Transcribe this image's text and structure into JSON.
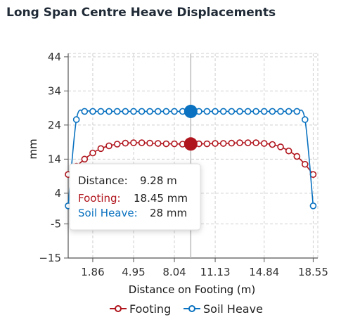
{
  "chart_data": {
    "type": "line",
    "title": "Long Span Centre Heave Displacements",
    "xlabel": "Distance on Footing (m)",
    "ylabel": "mm",
    "xlim": [
      0,
      18.9
    ],
    "ylim": [
      -15,
      45
    ],
    "x_ticks": [
      1.86,
      4.95,
      8.04,
      11.13,
      14.84,
      18.55
    ],
    "x_tick_labels": [
      "1.86",
      "4.95",
      "8.04",
      "11.13",
      "14.84",
      "18.55"
    ],
    "y_ticks": [
      -15,
      -5,
      4,
      14,
      24,
      34,
      44
    ],
    "y_tick_labels": [
      "−15",
      "-5",
      "4",
      "14",
      "24",
      "34",
      "44"
    ],
    "grid": true,
    "legend": "bottom",
    "x": [
      0,
      0.62,
      1.24,
      1.86,
      2.47,
      3.09,
      3.71,
      4.33,
      4.95,
      5.57,
      6.18,
      6.8,
      7.42,
      8.04,
      8.66,
      9.28,
      9.9,
      10.51,
      11.13,
      11.75,
      12.37,
      12.99,
      13.61,
      14.22,
      14.84,
      15.46,
      16.08,
      16.7,
      17.32,
      17.93,
      18.55
    ],
    "series": [
      {
        "name": "Footing",
        "color": "#b0151d",
        "values": [
          9.5,
          11.9,
          14.0,
          15.8,
          17.1,
          17.9,
          18.4,
          18.7,
          18.8,
          18.8,
          18.7,
          18.6,
          18.5,
          18.5,
          18.4,
          18.45,
          18.5,
          18.5,
          18.6,
          18.6,
          18.7,
          18.8,
          18.8,
          18.8,
          18.6,
          18.3,
          17.6,
          16.4,
          14.8,
          12.5,
          9.5
        ]
      },
      {
        "name": "Soil Heave",
        "color": "#0a72c0",
        "values": [
          0.3,
          25.6,
          28,
          28,
          28,
          28,
          28,
          28,
          28,
          28,
          28,
          28,
          28,
          28,
          28,
          28,
          28,
          28,
          28,
          28,
          28,
          28,
          28,
          28,
          28,
          28,
          28,
          28,
          28,
          25.6,
          0.3
        ]
      }
    ],
    "hover": {
      "index": 15,
      "distance_label": "Distance:",
      "distance_value": "9.28 m",
      "footing_label": "Footing:",
      "footing_value": "18.45 mm",
      "heave_label": "Soil Heave:",
      "heave_value": "28 mm"
    }
  }
}
